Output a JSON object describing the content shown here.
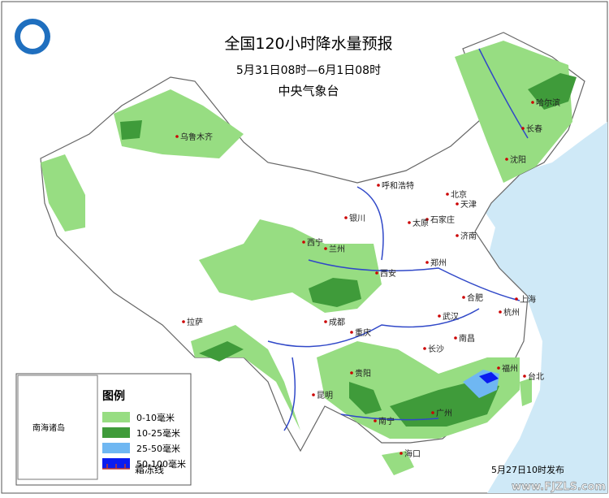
{
  "header": {
    "title": "全国120小时降水量预报",
    "period": "5月31日08时—6月1日08时",
    "agency": "中央气象台"
  },
  "cities": [
    "哈尔滨",
    "长春",
    "沈阳",
    "乌鲁木齐",
    "呼和浩特",
    "北京",
    "天津",
    "石家庄",
    "太原",
    "银川",
    "济南",
    "兰州",
    "西宁",
    "郑州",
    "西安",
    "合肥",
    "上海",
    "杭州",
    "拉萨",
    "成都",
    "武汉",
    "重庆",
    "长沙",
    "南昌",
    "贵阳",
    "昆明",
    "福州",
    "台北",
    "南宁",
    "广州",
    "海口"
  ],
  "inset": {
    "label": "南海诸岛"
  },
  "legend": {
    "title": "图例",
    "items": [
      {
        "label": "0-10毫米",
        "color": "#97dd82"
      },
      {
        "label": "10-25毫米",
        "color": "#3f9b3a"
      },
      {
        "label": "25-50毫米",
        "color": "#6fb7f2"
      },
      {
        "label": "50-100毫米",
        "color": "#0a1cf0"
      }
    ],
    "frost_line": "霜冻线"
  },
  "footer": {
    "release": "5月27日10时发布",
    "watermark": "www.FJZLS.com"
  }
}
